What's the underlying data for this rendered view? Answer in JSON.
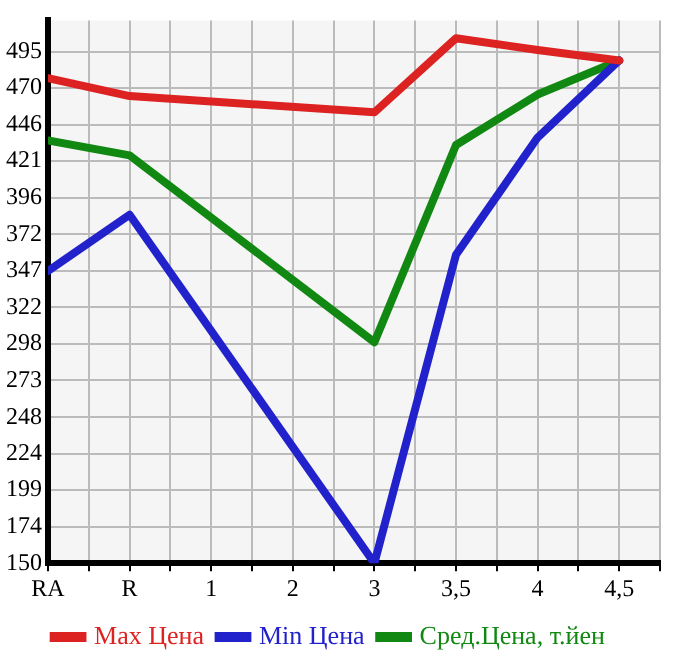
{
  "chart_data": {
    "type": "line",
    "categories": [
      "RA",
      "R",
      "1",
      "2",
      "3",
      "3,5",
      "4",
      "4,5"
    ],
    "series": [
      {
        "name": "Max Цена",
        "color": "#dd2222",
        "values": [
          477,
          465,
          null,
          null,
          454,
          504,
          496,
          489
        ]
      },
      {
        "name": "Min Цена",
        "color": "#2222cc",
        "values": [
          347,
          385,
          null,
          null,
          150,
          358,
          437,
          489
        ]
      },
      {
        "name": "Сред.Цена, т.йен",
        "color": "#118811",
        "values": [
          435,
          425,
          null,
          null,
          299,
          432,
          466,
          489
        ]
      }
    ],
    "ylim": [
      150,
      516
    ],
    "yticks": [
      150,
      {
        "value": 174.4,
        "label": "174"
      },
      {
        "value": 199.3,
        "label": "199"
      },
      {
        "value": 223.9,
        "label": "224"
      },
      {
        "value": 248.4,
        "label": "248"
      },
      {
        "value": 273.2,
        "label": "273"
      },
      {
        "value": 297.9,
        "label": "298"
      },
      {
        "value": 322.5,
        "label": "322"
      },
      {
        "value": 347.1,
        "label": "347"
      },
      {
        "value": 371.8,
        "label": "372"
      },
      {
        "value": 396.4,
        "label": "396"
      },
      {
        "value": 421.1,
        "label": "421"
      },
      {
        "value": 445.7,
        "label": "446"
      },
      {
        "value": 470.4,
        "label": "470"
      },
      495
    ],
    "grid": true,
    "legend": "bottom",
    "marker": "none",
    "line_style": "solid"
  }
}
